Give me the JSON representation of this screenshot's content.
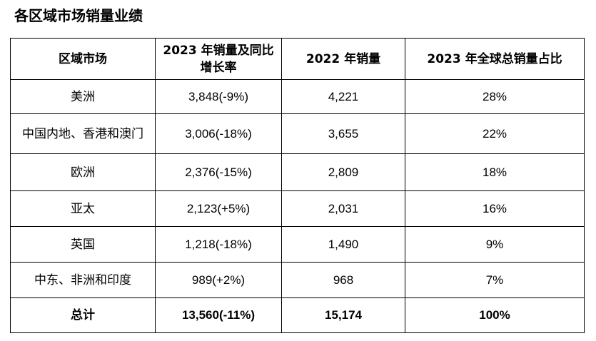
{
  "title": "各区域市场销量业绩",
  "table": {
    "headers": [
      "区域市场",
      "2023 年销量及同比增长率",
      "2022 年销量",
      "2023 年全球总销量占比"
    ],
    "rows": [
      [
        "美洲",
        "3,848(-9%)",
        "4,221",
        "28%"
      ],
      [
        "中国内地、香港和澳门",
        "3,006(-18%)",
        "3,655",
        "22%"
      ],
      [
        "欧洲",
        "2,376(-15%)",
        "2,809",
        "18%"
      ],
      [
        "亚太",
        "2,123(+5%)",
        "2,031",
        "16%"
      ],
      [
        "英国",
        "1,218(-18%)",
        "1,490",
        "9%"
      ],
      [
        "中东、非洲和印度",
        "989(+2%)",
        "968",
        "7%"
      ]
    ],
    "total": [
      "总计",
      "13,560(-11%)",
      "15,174",
      "100%"
    ]
  }
}
